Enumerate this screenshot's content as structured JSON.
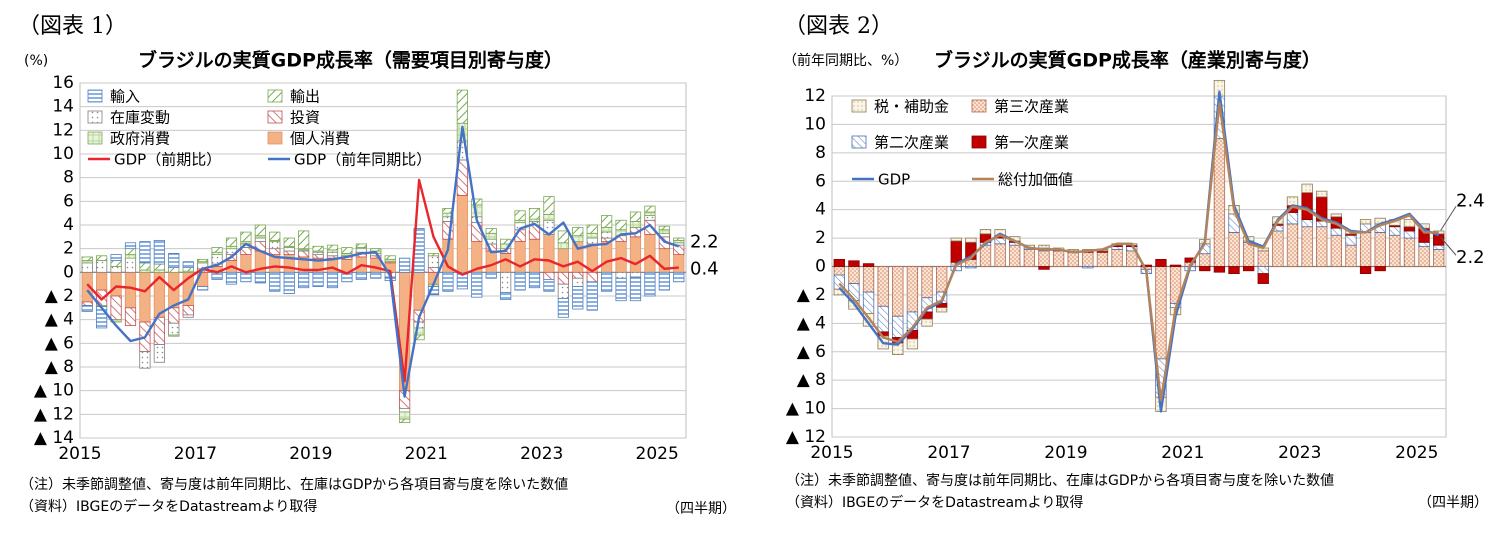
{
  "chart_data": [
    {
      "type": "bar",
      "id": "fig1",
      "caption": "（図表 1）",
      "title": "ブラジルの実質GDP成長率（需要項目別寄与度）",
      "ylabel": "(%)",
      "xlabel": "（四半期）",
      "ylim": [
        -14,
        16
      ],
      "yticks": [
        16,
        14,
        12,
        10,
        8,
        6,
        4,
        2,
        0,
        -2,
        -4,
        -6,
        -8,
        -10,
        -12,
        -14
      ],
      "ytick_labels": [
        "16",
        "14",
        "12",
        "10",
        "8",
        "6",
        "4",
        "2",
        "0",
        "▲ 2",
        "▲ 4",
        "▲ 6",
        "▲ 8",
        "▲ 10",
        "▲ 12",
        "▲ 14"
      ],
      "xtick_labels": [
        "2015",
        "2017",
        "2019",
        "2021",
        "2023",
        "2025"
      ],
      "xtick_indices": [
        0,
        8,
        16,
        24,
        32,
        40
      ],
      "n_quarters": 42,
      "legend": [
        "輸入",
        "輸出",
        "在庫変動",
        "投資",
        "政府消費",
        "個人消費",
        "GDP（前期比）",
        "GDP（前年同期比）"
      ],
      "series_bar": [
        {
          "name": "個人消費",
          "values": [
            -2.5,
            -1.5,
            -2,
            -3,
            -4.2,
            -3.8,
            -3,
            -2.8,
            -1.2,
            0.5,
            1,
            1.5,
            1.8,
            1.5,
            1.5,
            1.3,
            1.2,
            1.2,
            1.1,
            1.3,
            1.2,
            0.8,
            -10,
            -3.2,
            -1,
            2.8,
            6.5,
            2.6,
            1.8,
            1.6,
            2.6,
            2.8,
            3.2,
            2,
            2.6,
            2.4,
            2.6,
            2.6,
            3,
            3.2,
            2,
            1.5
          ]
        },
        {
          "name": "投資",
          "values": [
            -0.3,
            -1.3,
            -2,
            -1.5,
            -2.5,
            -2.3,
            -1.3,
            -0.8,
            0.3,
            0.2,
            0.5,
            0.6,
            0.8,
            0.5,
            0.3,
            0.5,
            0.3,
            0.2,
            0.2,
            0.4,
            0.2,
            0.1,
            -1.5,
            -1,
            0.4,
            1.5,
            3,
            1.6,
            0.6,
            0.4,
            1,
            1.2,
            -0.6,
            -1,
            -0.5,
            -0.8,
            0.3,
            0.5,
            0.8,
            1.2,
            1,
            0.8
          ]
        },
        {
          "name": "在庫変動",
          "values": [
            0.8,
            1,
            0.5,
            1.2,
            -1.4,
            -1.5,
            -1,
            -0.2,
            0.5,
            0.8,
            0.5,
            0.3,
            0.3,
            0.6,
            0.3,
            0.1,
            0.2,
            0.3,
            0.1,
            0.3,
            0.2,
            -0.4,
            -0.3,
            -0.5,
            1,
            0.4,
            1.6,
            0.5,
            0.4,
            -1.7,
            0.6,
            0.3,
            1.2,
            -1.2,
            -0.7,
            0.5,
            0.5,
            -0.5,
            -0.4,
            0.4,
            0.3,
            0.2
          ]
        },
        {
          "name": "政府消費",
          "values": [
            0.2,
            -0.1,
            -0.2,
            0.3,
            0.2,
            0.2,
            -0.1,
            0.1,
            0.1,
            0.2,
            0.2,
            0.2,
            0.2,
            0.1,
            0.1,
            0.1,
            0.1,
            0.2,
            0.2,
            0.1,
            0.2,
            0.2,
            -0.6,
            -0.6,
            -0.2,
            0.3,
            1.5,
            1,
            0.5,
            0.4,
            0.2,
            0.2,
            0.5,
            0.5,
            0.5,
            0.4,
            0.4,
            0.5,
            0.5,
            0.3,
            0.3,
            0.2
          ]
        },
        {
          "name": "輸出",
          "values": [
            0.3,
            0.4,
            0.5,
            0.5,
            0.6,
            0.5,
            0.4,
            0.3,
            0.2,
            0.4,
            0.7,
            0.8,
            0.9,
            0.7,
            0.7,
            1.5,
            0.4,
            0.4,
            0.5,
            0.3,
            0.2,
            0.3,
            -0.3,
            -0.4,
            0.2,
            0.4,
            2.8,
            0.5,
            0.4,
            0.4,
            0.8,
            0.9,
            1.5,
            1,
            0.7,
            0.7,
            1,
            0.8,
            0.8,
            0.5,
            0.3,
            0.2
          ]
        },
        {
          "name": "輸入",
          "values": [
            -0.5,
            -1.8,
            0.5,
            0.5,
            1.8,
            2,
            1.2,
            0.5,
            -0.3,
            -0.6,
            -1,
            -0.8,
            -0.9,
            -1.6,
            -1.8,
            -1.3,
            -1.2,
            -1.3,
            -0.8,
            -0.6,
            -0.5,
            -0.3,
            1.2,
            3.7,
            -0.7,
            -1.6,
            -1.4,
            -2.1,
            -0.5,
            -0.6,
            -1.5,
            -1.3,
            -1,
            -1.6,
            -1.9,
            -2.4,
            -1.6,
            -1.9,
            -2,
            -2,
            -1.5,
            -0.8
          ]
        }
      ],
      "series_line": [
        {
          "name": "GDP（前期比）",
          "color": "#e8262c",
          "values": [
            -1,
            -2.3,
            -1.2,
            -1.3,
            -1.6,
            -0.4,
            -1.5,
            -0.5,
            0.3,
            0,
            0.5,
            0,
            0.3,
            0.5,
            0.4,
            0.2,
            0.2,
            0.4,
            -0.1,
            0.6,
            0.4,
            0.1,
            -9.2,
            7.8,
            3,
            0.5,
            -0.2,
            0.3,
            0.6,
            1.1,
            0.5,
            1.1,
            1,
            0.5,
            0.9,
            0.1,
            0.9,
            1.2,
            0.7,
            1.4,
            0.3,
            0.4
          ]
        },
        {
          "name": "GDP（前年同期比）",
          "color": "#4472c4",
          "values": [
            -1.5,
            -3,
            -4.5,
            -5.8,
            -5.5,
            -3.5,
            -2.8,
            -2.3,
            0.3,
            0.6,
            1.3,
            2.4,
            1.8,
            1.3,
            1.2,
            1.1,
            1,
            1.1,
            1.3,
            1.6,
            1.7,
            -0.3,
            -10.5,
            -3.8,
            -1,
            1.9,
            12.3,
            4.4,
            1.7,
            1.8,
            3.7,
            4.1,
            3.2,
            4.2,
            2,
            2.3,
            2.4,
            3.2,
            3.3,
            4,
            2.6,
            2.2
          ]
        }
      ],
      "end_labels": [
        "2.2",
        "0.4"
      ],
      "note": "（注）未季節調整値、寄与度は前年同期比、在庫はGDPから各項目寄与度を除いた数値",
      "source": "（資料）IBGEのデータをDatastreamより取得"
    },
    {
      "type": "bar",
      "id": "fig2",
      "caption": "（図表 2）",
      "title": "ブラジルの実質GDP成長率（産業別寄与度）",
      "ylabel": "（前年同期比、%）",
      "xlabel": "（四半期）",
      "ylim": [
        -12,
        12
      ],
      "yticks": [
        12,
        10,
        8,
        6,
        4,
        2,
        0,
        -2,
        -4,
        -6,
        -8,
        -10,
        -12
      ],
      "ytick_labels": [
        "12",
        "10",
        "8",
        "6",
        "4",
        "2",
        "0",
        "▲ 2",
        "▲ 4",
        "▲ 6",
        "▲ 8",
        "▲ 10",
        "▲ 12"
      ],
      "xtick_labels": [
        "2015",
        "2017",
        "2019",
        "2021",
        "2023",
        "2025"
      ],
      "xtick_indices": [
        0,
        8,
        16,
        24,
        32,
        40
      ],
      "n_quarters": 42,
      "legend": [
        "税・補助金",
        "第三次産業",
        "第二次産業",
        "第一次産業",
        "GDP",
        "総付加価値"
      ],
      "series_bar": [
        {
          "name": "第三次産業",
          "values": [
            -0.6,
            -1.2,
            -1.8,
            -2.8,
            -3.5,
            -3.2,
            -2.2,
            -1.8,
            0.3,
            0.5,
            1.5,
            1.6,
            1.5,
            1.2,
            1.1,
            1.1,
            1,
            1,
            1,
            1.2,
            1.1,
            -0.2,
            -6.5,
            -2.6,
            0.3,
            0.9,
            9,
            2.4,
            1.7,
            1.1,
            2.5,
            3,
            2.8,
            2.8,
            2.2,
            1.5,
            2.4,
            2.4,
            2.2,
            2,
            1.4,
            1.2
          ]
        },
        {
          "name": "第二次産業",
          "values": [
            -1,
            -1.2,
            -1.5,
            -1.8,
            -1.5,
            -1.3,
            -1,
            -0.8,
            -0.3,
            -0.1,
            0.2,
            0.4,
            0.2,
            0.1,
            0.2,
            0,
            0,
            -0.1,
            0,
            0.2,
            0.3,
            -0.3,
            -2.7,
            -0.3,
            -0.3,
            0.7,
            3,
            1.3,
            0.1,
            -0.5,
            0.4,
            0.8,
            0.5,
            0.4,
            0.5,
            0.7,
            0.6,
            0.6,
            0.6,
            0.5,
            0.3,
            0.3
          ]
        },
        {
          "name": "第一次産業",
          "values": [
            0.5,
            0.4,
            0.2,
            -0.3,
            -0.4,
            -0.6,
            -0.5,
            -0.3,
            1.5,
            1.2,
            0.6,
            0.2,
            0.1,
            0,
            -0.2,
            0.1,
            0.1,
            0.1,
            0.1,
            0.1,
            0.1,
            0.1,
            0.5,
            0.1,
            0.3,
            -0.3,
            -0.4,
            -0.5,
            -0.3,
            -0.7,
            0.1,
            0.5,
            1.9,
            1.7,
            0.8,
            0.1,
            -0.5,
            -0.3,
            0.1,
            0.3,
            1,
            0.8
          ]
        },
        {
          "name": "税・補助金",
          "values": [
            -0.4,
            -0.6,
            -0.9,
            -0.9,
            -0.8,
            -0.7,
            -0.5,
            -0.3,
            0.2,
            0.3,
            0.3,
            0.4,
            0.3,
            0.2,
            0.2,
            0.1,
            0.1,
            0.1,
            0.1,
            0.1,
            0.1,
            0,
            -1,
            -0.5,
            0,
            0.3,
            1.1,
            0.6,
            0.3,
            0.2,
            0.5,
            0.6,
            0.6,
            0.4,
            0.2,
            0.2,
            0.3,
            0.4,
            0.4,
            0.5,
            0.3,
            0.2
          ]
        }
      ],
      "series_line": [
        {
          "name": "GDP",
          "color": "#4472c4",
          "values": [
            -1.5,
            -2.6,
            -4,
            -5.4,
            -5.5,
            -4.4,
            -3,
            -2.5,
            0.2,
            0.7,
            1.6,
            2.3,
            1.8,
            1.3,
            1.2,
            1.2,
            1,
            1.1,
            1.2,
            1.6,
            1.6,
            -0.3,
            -10.2,
            -3.5,
            0,
            1.7,
            12.3,
            4.3,
            1.8,
            1.4,
            3.3,
            4.3,
            4.1,
            3.4,
            3.1,
            2.5,
            2.4,
            3,
            3.3,
            3.7,
            2.6,
            2.2
          ]
        },
        {
          "name": "総付加価値",
          "color": "#b5835a",
          "values": [
            -1.2,
            -2.3,
            -3.6,
            -5,
            -5.3,
            -4.3,
            -2.9,
            -2.4,
            0.1,
            0.6,
            1.7,
            2.2,
            1.8,
            1.3,
            1.2,
            1.2,
            1,
            1.1,
            1.2,
            1.6,
            1.6,
            -0.3,
            -9.4,
            -3,
            0.1,
            1.6,
            11.5,
            4,
            1.6,
            1.3,
            3.2,
            4.2,
            4,
            3.3,
            3,
            2.4,
            2.4,
            2.9,
            3.2,
            3.6,
            2.4,
            2.4
          ]
        }
      ],
      "end_labels": [
        "2.4",
        "2.2"
      ],
      "note": "（注）未季節調整値、寄与度は前年同期比、在庫はGDPから各項目寄与度を除いた数値",
      "source": "（資料）IBGEのデータをDatastreamより取得"
    }
  ]
}
